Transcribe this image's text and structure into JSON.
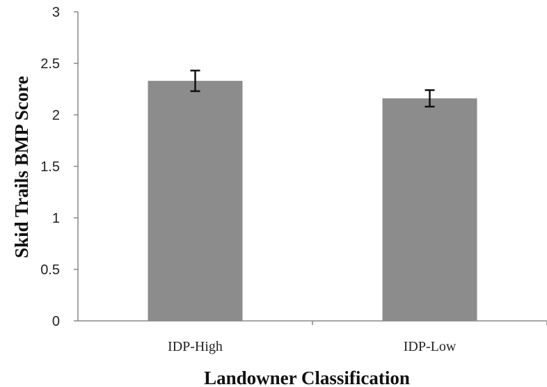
{
  "chart_data": {
    "type": "bar",
    "title": "",
    "xlabel": "Landowner Classification",
    "ylabel": "Skid Trails BMP Score",
    "categories": [
      "IDP-High",
      "IDP-Low"
    ],
    "values": [
      2.33,
      2.16
    ],
    "error": [
      0.1,
      0.08
    ],
    "ylim": [
      0,
      3
    ],
    "yticks": [
      0,
      0.5,
      1,
      1.5,
      2,
      2.5,
      3
    ],
    "ytick_labels": [
      "0",
      "0.5",
      "1",
      "1.5",
      "2",
      "2.5",
      "3"
    ],
    "grid": false,
    "legend": "none",
    "bar_color": "#8c8c8c",
    "error_color": "#111111",
    "axis_color": "#888888"
  }
}
